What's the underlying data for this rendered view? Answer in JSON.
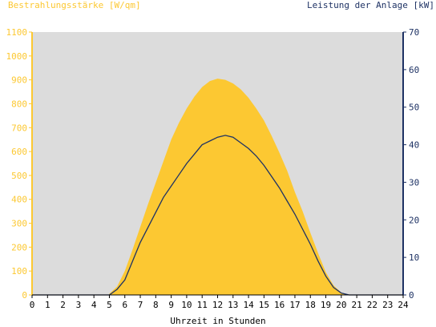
{
  "chart_data": {
    "type": "area",
    "ylabel_left": "Bestrahlungsstärke [W/qm]",
    "ylabel_right": "Leistung der Anlage [kW]",
    "xlabel": "Uhrzeit in Stunden",
    "xlim": [
      0,
      24
    ],
    "ylim_left": [
      0,
      1100
    ],
    "ylim_right": [
      0,
      70
    ],
    "x_ticks": [
      0,
      1,
      2,
      3,
      4,
      5,
      6,
      7,
      8,
      9,
      10,
      11,
      12,
      13,
      14,
      15,
      16,
      17,
      18,
      19,
      20,
      21,
      22,
      23,
      24
    ],
    "y_left_ticks": [
      0,
      100,
      200,
      300,
      400,
      500,
      600,
      700,
      800,
      900,
      1000,
      1100
    ],
    "y_right_ticks": [
      0,
      10,
      20,
      30,
      40,
      50,
      60,
      70
    ],
    "grid": false,
    "plot_background": "#dcdcdc",
    "series": [
      {
        "name": "Bestrahlungsstärke [W/qm]",
        "kind": "area",
        "axis": "left",
        "color": "#fcc832",
        "x": [
          5.0,
          5.5,
          6.0,
          6.5,
          7.0,
          7.5,
          8.0,
          8.5,
          9.0,
          9.5,
          10.0,
          10.5,
          11.0,
          11.5,
          12.0,
          12.5,
          13.0,
          13.5,
          14.0,
          14.5,
          15.0,
          15.5,
          16.0,
          16.5,
          17.0,
          17.5,
          18.0,
          18.5,
          19.0,
          19.5,
          20.0,
          20.5
        ],
        "y": [
          5,
          35,
          100,
          190,
          285,
          380,
          470,
          560,
          650,
          720,
          780,
          830,
          870,
          895,
          905,
          900,
          885,
          860,
          825,
          780,
          730,
          665,
          595,
          520,
          430,
          350,
          260,
          175,
          95,
          40,
          10,
          0
        ]
      },
      {
        "name": "Leistung der Anlage [kW]",
        "kind": "line",
        "axis": "right",
        "color": "#1e3264",
        "x": [
          5.0,
          5.5,
          6.0,
          6.5,
          7.0,
          7.5,
          8.0,
          8.5,
          9.0,
          9.5,
          10.0,
          10.5,
          11.0,
          11.5,
          12.0,
          12.5,
          13.0,
          13.5,
          14.0,
          14.5,
          15.0,
          15.5,
          16.0,
          16.5,
          17.0,
          17.5,
          18.0,
          18.5,
          19.0,
          19.5,
          20.0,
          20.5
        ],
        "y": [
          0,
          1.5,
          4,
          9,
          14,
          18,
          22,
          26,
          29,
          32,
          35,
          37.5,
          40,
          41,
          42,
          42.5,
          42,
          40.5,
          39,
          37,
          34.5,
          31.5,
          28.5,
          25,
          21.5,
          17.5,
          13.5,
          9,
          5,
          2,
          0.5,
          0
        ]
      }
    ]
  }
}
